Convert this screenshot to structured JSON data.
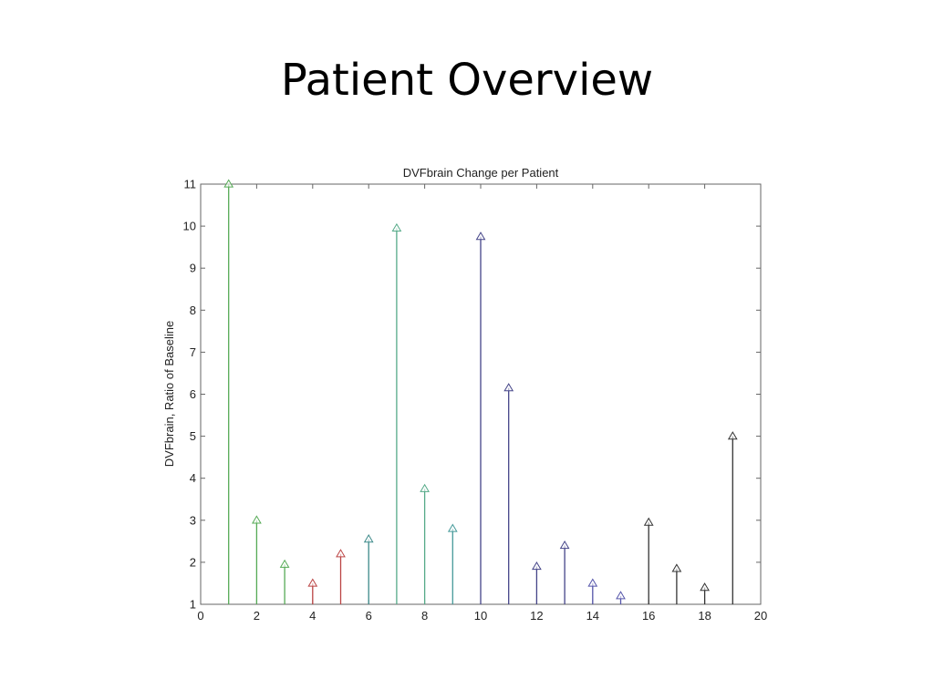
{
  "slide": {
    "title": "Patient Overview"
  },
  "chart_data": {
    "type": "stem",
    "title": "DVFbrain Change per Patient",
    "xlabel": "",
    "ylabel": "DVFbrain, Ratio of Baseline",
    "xlim": [
      0,
      20
    ],
    "ylim": [
      1,
      11
    ],
    "xticks": [
      0,
      2,
      4,
      6,
      8,
      10,
      12,
      14,
      16,
      18,
      20
    ],
    "yticks": [
      1,
      2,
      3,
      4,
      5,
      6,
      7,
      8,
      9,
      10,
      11
    ],
    "baseline": 1,
    "marker": "triangle-up",
    "grid": false,
    "points": [
      {
        "x": 1,
        "y": 11.0,
        "color": "#55aa55"
      },
      {
        "x": 2,
        "y": 3.0,
        "color": "#55aa55"
      },
      {
        "x": 3,
        "y": 1.95,
        "color": "#55aa55"
      },
      {
        "x": 4,
        "y": 1.5,
        "color": "#bb4444"
      },
      {
        "x": 5,
        "y": 2.2,
        "color": "#bb4444"
      },
      {
        "x": 6,
        "y": 2.55,
        "color": "#3d8a8a"
      },
      {
        "x": 7,
        "y": 9.95,
        "color": "#55aa88"
      },
      {
        "x": 8,
        "y": 3.75,
        "color": "#55aa88"
      },
      {
        "x": 9,
        "y": 2.8,
        "color": "#449999"
      },
      {
        "x": 10,
        "y": 9.75,
        "color": "#444488"
      },
      {
        "x": 11,
        "y": 6.15,
        "color": "#444488"
      },
      {
        "x": 12,
        "y": 1.9,
        "color": "#444488"
      },
      {
        "x": 13,
        "y": 2.4,
        "color": "#444488"
      },
      {
        "x": 14,
        "y": 1.5,
        "color": "#5555aa"
      },
      {
        "x": 15,
        "y": 1.2,
        "color": "#5555aa"
      },
      {
        "x": 16,
        "y": 2.95,
        "color": "#333333"
      },
      {
        "x": 17,
        "y": 1.85,
        "color": "#333333"
      },
      {
        "x": 18,
        "y": 1.4,
        "color": "#333333"
      },
      {
        "x": 19,
        "y": 5.0,
        "color": "#333333"
      }
    ]
  }
}
